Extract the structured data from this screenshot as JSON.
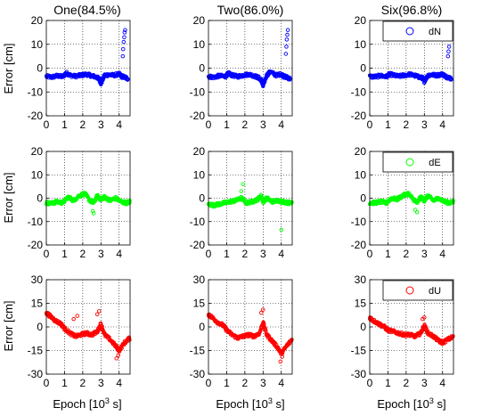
{
  "figure": {
    "columns": [
      "One(84.5%)",
      "Two(86.0%)",
      "Six(96.8%)"
    ],
    "row_ylabel": "Error [cm]",
    "xlabel_text": "Epoch [10",
    "xlabel_sup": "3",
    "xlabel_tail": " s]"
  },
  "chart_data": [
    {
      "type": "scatter",
      "row_component": "dN",
      "legend": "dN",
      "color": "#0000ff",
      "xlim": [
        0,
        4.6
      ],
      "ylim": [
        -20,
        20
      ],
      "yticks": [
        -20,
        -10,
        0,
        10,
        20
      ],
      "xticks": [
        0,
        1,
        2,
        3,
        4
      ],
      "grid": true,
      "legend_position": "top-right (Six panel only)",
      "panels": [
        {
          "name": "One",
          "series": [
            {
              "x": [
                0.0,
                0.3,
                0.6,
                0.9,
                1.1,
                1.3,
                1.6,
                1.9,
                2.2,
                2.5,
                2.75,
                2.9,
                3.0,
                3.2,
                3.4,
                3.7,
                4.0,
                4.15,
                4.3,
                4.5
              ],
              "y": [
                -3.5,
                -3.8,
                -3.2,
                -3.6,
                -2.0,
                -3.0,
                -3.4,
                -3.0,
                -2.6,
                -3.2,
                -3.8,
                -4.5,
                -6.5,
                -3.0,
                -2.8,
                -3.0,
                -2.5,
                -3.5,
                -3.8,
                -4.5
              ]
            },
            {
              "x": [
                4.2,
                4.22,
                4.25,
                4.28,
                4.3,
                4.33
              ],
              "y": [
                5,
                8,
                11,
                13,
                15,
                16
              ]
            }
          ]
        },
        {
          "name": "Two",
          "series": [
            {
              "x": [
                0.0,
                0.3,
                0.6,
                0.9,
                1.1,
                1.3,
                1.6,
                1.9,
                2.2,
                2.5,
                2.75,
                2.9,
                3.0,
                3.2,
                3.4,
                3.7,
                4.0,
                4.15,
                4.3,
                4.5
              ],
              "y": [
                -3.5,
                -3.8,
                -3.2,
                -3.6,
                -2.2,
                -3.0,
                -3.5,
                -3.0,
                -2.6,
                -3.2,
                -4.0,
                -5.0,
                -7.5,
                -3.0,
                -1.5,
                -3.0,
                -2.5,
                -3.5,
                -3.8,
                -4.5
              ]
            },
            {
              "x": [
                4.25,
                4.28,
                4.3,
                4.33,
                4.36
              ],
              "y": [
                6,
                9,
                12,
                14,
                16
              ]
            }
          ]
        },
        {
          "name": "Six",
          "series": [
            {
              "x": [
                0.0,
                0.3,
                0.6,
                0.9,
                1.1,
                1.3,
                1.6,
                1.9,
                2.2,
                2.5,
                2.75,
                2.9,
                3.0,
                3.2,
                3.4,
                3.7,
                4.0,
                4.15,
                4.3,
                4.5
              ],
              "y": [
                -3.5,
                -3.6,
                -3.2,
                -3.6,
                -2.5,
                -3.0,
                -3.4,
                -3.0,
                -2.6,
                -3.2,
                -3.8,
                -4.2,
                -5.5,
                -3.0,
                -2.8,
                -3.0,
                -2.5,
                -3.5,
                -3.8,
                -4.5
              ]
            },
            {
              "x": [
                4.3,
                4.33,
                4.36
              ],
              "y": [
                5,
                7,
                9
              ]
            }
          ]
        }
      ]
    },
    {
      "type": "scatter",
      "row_component": "dE",
      "legend": "dE",
      "color": "#00ff00",
      "xlim": [
        0,
        4.6
      ],
      "ylim": [
        -20,
        20
      ],
      "yticks": [
        -20,
        -10,
        0,
        10,
        20
      ],
      "xticks": [
        0,
        1,
        2,
        3,
        4
      ],
      "grid": true,
      "legend_position": "top-right (Six panel only)",
      "panels": [
        {
          "name": "One",
          "series": [
            {
              "x": [
                0.0,
                0.3,
                0.6,
                0.9,
                1.2,
                1.5,
                1.8,
                2.1,
                2.4,
                2.6,
                2.8,
                3.0,
                3.2,
                3.5,
                3.8,
                4.1,
                4.4,
                4.6
              ],
              "y": [
                -2.0,
                -2.2,
                -1.5,
                -2.0,
                0.5,
                -1.0,
                1.0,
                2.0,
                -1.0,
                -2.0,
                1.0,
                -0.5,
                0.5,
                -1.0,
                0.0,
                -1.5,
                -2.0,
                -1.5
              ]
            },
            {
              "x": [
                2.55,
                2.6
              ],
              "y": [
                -5.5,
                -6.5
              ]
            }
          ]
        },
        {
          "name": "Two",
          "series": [
            {
              "x": [
                0.0,
                0.3,
                0.6,
                0.9,
                1.2,
                1.5,
                1.8,
                2.1,
                2.4,
                2.7,
                2.9,
                3.0,
                3.2,
                3.5,
                3.8,
                4.1,
                4.4,
                4.6
              ],
              "y": [
                -2.5,
                -3.0,
                -2.5,
                -2.0,
                -1.5,
                -1.0,
                0.0,
                -2.0,
                -1.5,
                -0.5,
                1.0,
                -1.5,
                0.0,
                -1.5,
                -1.0,
                -1.5,
                -2.0,
                -1.5
              ]
            },
            {
              "x": [
                1.8,
                1.9,
                4.0
              ],
              "y": [
                3.0,
                6.0,
                -13.5
              ]
            }
          ]
        },
        {
          "name": "Six",
          "series": [
            {
              "x": [
                0.0,
                0.3,
                0.6,
                0.9,
                1.2,
                1.5,
                1.8,
                2.1,
                2.4,
                2.6,
                2.8,
                3.0,
                3.2,
                3.5,
                3.8,
                4.1,
                4.4,
                4.6
              ],
              "y": [
                -2.0,
                -2.0,
                -1.5,
                -2.0,
                0.0,
                -0.5,
                1.0,
                2.0,
                -0.5,
                -2.0,
                0.5,
                -1.0,
                1.0,
                -1.0,
                0.0,
                -1.5,
                -2.0,
                -1.5
              ]
            },
            {
              "x": [
                2.5,
                2.6
              ],
              "y": [
                -5.0,
                -6.0
              ]
            }
          ]
        }
      ]
    },
    {
      "type": "scatter",
      "row_component": "dU",
      "legend": "dU",
      "color": "#ff0000",
      "xlim": [
        0,
        4.6
      ],
      "ylim": [
        -30,
        30
      ],
      "yticks": [
        -30,
        -15,
        0,
        15,
        30
      ],
      "xticks": [
        0,
        1,
        2,
        3,
        4
      ],
      "grid": true,
      "legend_position": "top-right (Six panel only)",
      "panels": [
        {
          "name": "One",
          "series": [
            {
              "x": [
                0.0,
                0.2,
                0.5,
                0.8,
                1.0,
                1.3,
                1.6,
                1.9,
                2.2,
                2.5,
                2.8,
                3.0,
                3.2,
                3.5,
                3.8,
                4.0,
                4.3,
                4.6
              ],
              "y": [
                9,
                7,
                4,
                2,
                -1,
                -4,
                -6,
                -5,
                -4,
                -5,
                -3,
                2,
                -5,
                -8,
                -12,
                -15,
                -10,
                -7
              ]
            },
            {
              "x": [
                1.5,
                1.7,
                2.8,
                2.9,
                3.85,
                3.95
              ],
              "y": [
                5,
                7,
                8,
                10,
                -20,
                -18
              ]
            }
          ]
        },
        {
          "name": "Two",
          "series": [
            {
              "x": [
                0.0,
                0.2,
                0.5,
                0.8,
                1.0,
                1.3,
                1.6,
                1.9,
                2.2,
                2.5,
                2.8,
                3.0,
                3.2,
                3.5,
                3.8,
                4.0,
                4.3,
                4.6
              ],
              "y": [
                8,
                6,
                3,
                1,
                -2,
                -5,
                -7,
                -6,
                -5,
                -6,
                -4,
                3,
                -5,
                -9,
                -13,
                -17,
                -12,
                -8
              ]
            },
            {
              "x": [
                2.9,
                3.0,
                3.95,
                4.05
              ],
              "y": [
                9,
                11,
                -22,
                -19
              ]
            }
          ]
        },
        {
          "name": "Six",
          "series": [
            {
              "x": [
                0.0,
                0.2,
                0.5,
                0.8,
                1.0,
                1.3,
                1.6,
                1.9,
                2.2,
                2.5,
                2.8,
                3.0,
                3.2,
                3.5,
                3.8,
                4.0,
                4.3,
                4.6
              ],
              "y": [
                6,
                4,
                2,
                0,
                -2,
                -3,
                -4,
                -5,
                -5,
                -6,
                -4,
                1,
                -4,
                -6,
                -9,
                -10,
                -8,
                -6
              ]
            },
            {
              "x": [
                2.9,
                3.0
              ],
              "y": [
                5,
                6
              ]
            }
          ]
        }
      ]
    }
  ]
}
